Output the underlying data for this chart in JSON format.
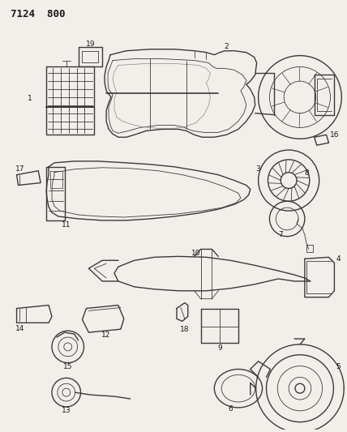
{
  "title": "7124  800",
  "bg_color": "#f2efea",
  "line_color": "#3a3a3a",
  "label_color": "#1a1a1a",
  "fig_width": 4.28,
  "fig_height": 5.33,
  "dpi": 100
}
